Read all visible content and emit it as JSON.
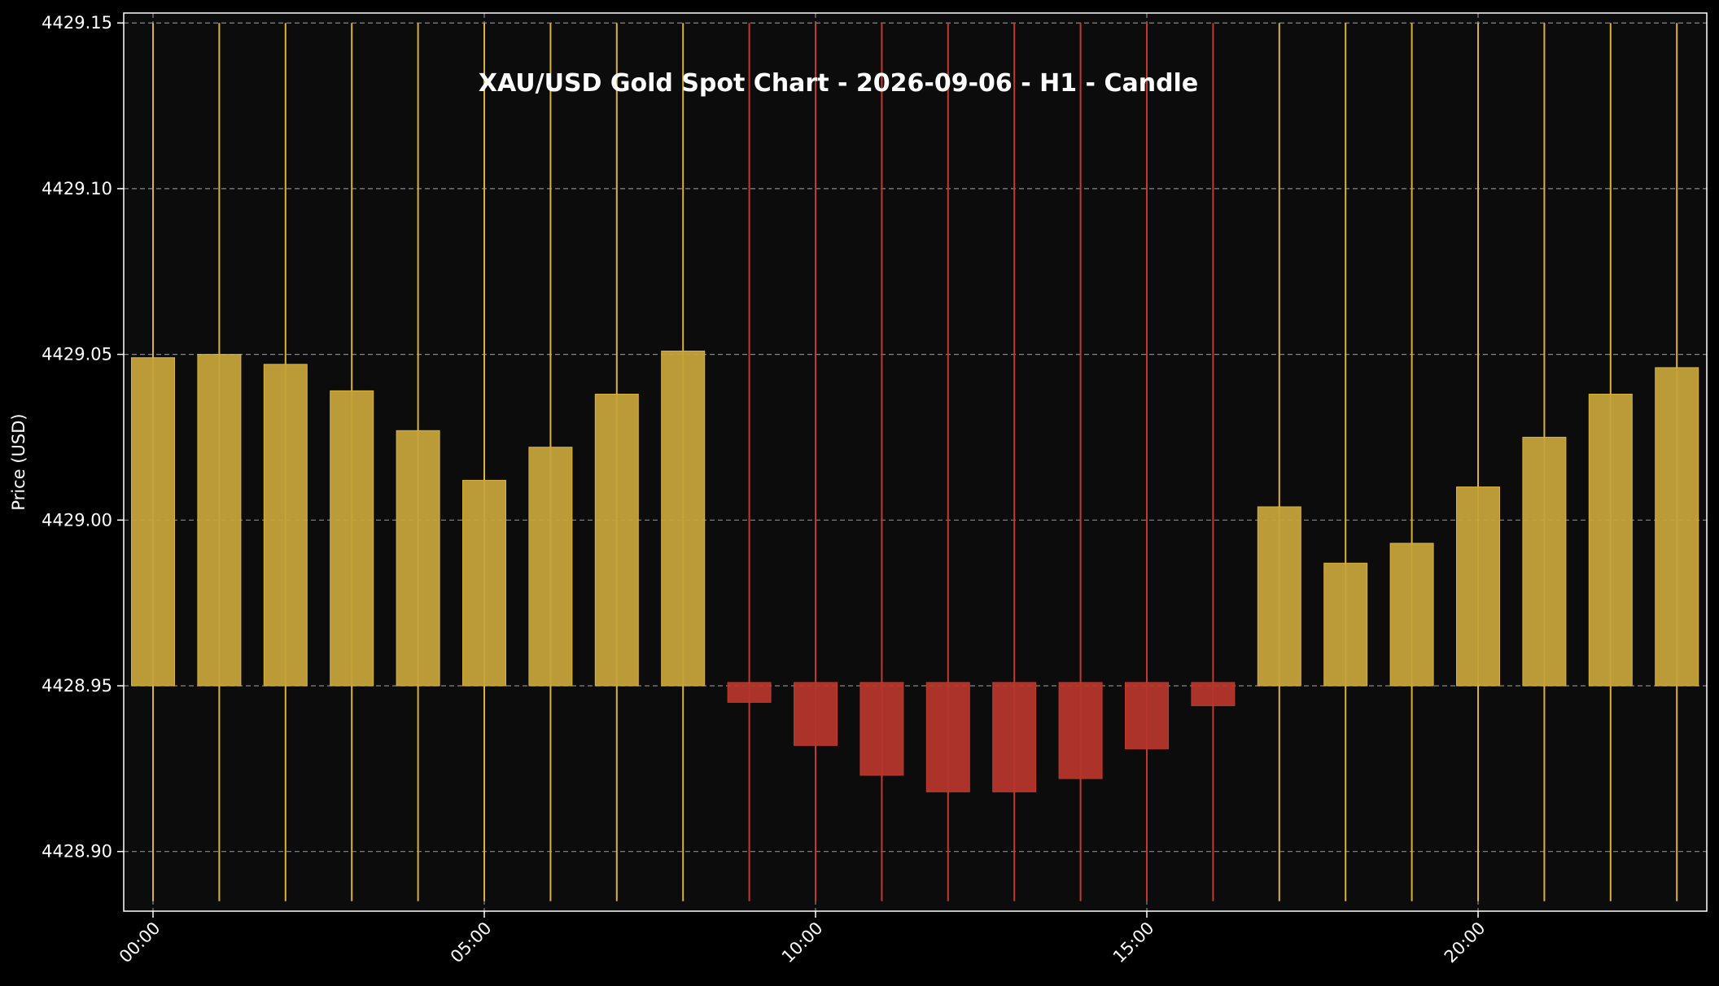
{
  "chart_data": {
    "type": "candlestick",
    "title": "XAU/USD Gold Spot Chart - 2026-09-06 - H1 - Candle",
    "xlabel": "",
    "ylabel": "Price (USD)",
    "ylim": [
      4428.882,
      4429.153
    ],
    "yticks": [
      4428.9,
      4428.95,
      4429.0,
      4429.05,
      4429.1,
      4429.15
    ],
    "ytick_labels": [
      "4428.90",
      "4428.95",
      "4429.00",
      "4429.05",
      "4429.10",
      "4429.15"
    ],
    "xticks": [
      0,
      5,
      10,
      15,
      20
    ],
    "xtick_labels": [
      "00:00",
      "05:00",
      "10:00",
      "15:00",
      "20:00"
    ],
    "grid": true,
    "colors": {
      "background": "#000000",
      "plot_background": "#0c0c0c",
      "up": "#c5a33a",
      "up_wick": "#d9b23a",
      "down": "#b5362b",
      "down_wick": "#c4392c",
      "grid": "#b0b0b0",
      "text": "#ffffff"
    },
    "candles": [
      {
        "hour": 0,
        "open": 4428.95,
        "close": 4429.049,
        "high": 4429.15,
        "low": 4428.885
      },
      {
        "hour": 1,
        "open": 4428.95,
        "close": 4429.05,
        "high": 4429.15,
        "low": 4428.885
      },
      {
        "hour": 2,
        "open": 4428.95,
        "close": 4429.047,
        "high": 4429.15,
        "low": 4428.885
      },
      {
        "hour": 3,
        "open": 4428.95,
        "close": 4429.039,
        "high": 4429.15,
        "low": 4428.885
      },
      {
        "hour": 4,
        "open": 4428.95,
        "close": 4429.027,
        "high": 4429.15,
        "low": 4428.885
      },
      {
        "hour": 5,
        "open": 4428.95,
        "close": 4429.012,
        "high": 4429.15,
        "low": 4428.885
      },
      {
        "hour": 6,
        "open": 4428.95,
        "close": 4429.022,
        "high": 4429.15,
        "low": 4428.885
      },
      {
        "hour": 7,
        "open": 4428.95,
        "close": 4429.038,
        "high": 4429.15,
        "low": 4428.885
      },
      {
        "hour": 8,
        "open": 4428.95,
        "close": 4429.051,
        "high": 4429.15,
        "low": 4428.885
      },
      {
        "hour": 9,
        "open": 4428.951,
        "close": 4428.945,
        "high": 4429.15,
        "low": 4428.885
      },
      {
        "hour": 10,
        "open": 4428.951,
        "close": 4428.932,
        "high": 4429.15,
        "low": 4428.885
      },
      {
        "hour": 11,
        "open": 4428.951,
        "close": 4428.923,
        "high": 4429.15,
        "low": 4428.885
      },
      {
        "hour": 12,
        "open": 4428.951,
        "close": 4428.918,
        "high": 4429.15,
        "low": 4428.885
      },
      {
        "hour": 13,
        "open": 4428.951,
        "close": 4428.918,
        "high": 4429.15,
        "low": 4428.885
      },
      {
        "hour": 14,
        "open": 4428.951,
        "close": 4428.922,
        "high": 4429.15,
        "low": 4428.885
      },
      {
        "hour": 15,
        "open": 4428.951,
        "close": 4428.931,
        "high": 4429.15,
        "low": 4428.885
      },
      {
        "hour": 16,
        "open": 4428.951,
        "close": 4428.944,
        "high": 4429.15,
        "low": 4428.885
      },
      {
        "hour": 17,
        "open": 4428.95,
        "close": 4429.004,
        "high": 4429.15,
        "low": 4428.885
      },
      {
        "hour": 18,
        "open": 4428.95,
        "close": 4428.987,
        "high": 4429.15,
        "low": 4428.885
      },
      {
        "hour": 19,
        "open": 4428.95,
        "close": 4428.993,
        "high": 4429.15,
        "low": 4428.885
      },
      {
        "hour": 20,
        "open": 4428.95,
        "close": 4429.01,
        "high": 4429.15,
        "low": 4428.885
      },
      {
        "hour": 21,
        "open": 4428.95,
        "close": 4429.025,
        "high": 4429.15,
        "low": 4428.885
      },
      {
        "hour": 22,
        "open": 4428.95,
        "close": 4429.038,
        "high": 4429.15,
        "low": 4428.885
      },
      {
        "hour": 23,
        "open": 4428.95,
        "close": 4429.046,
        "high": 4429.15,
        "low": 4428.885
      }
    ]
  }
}
